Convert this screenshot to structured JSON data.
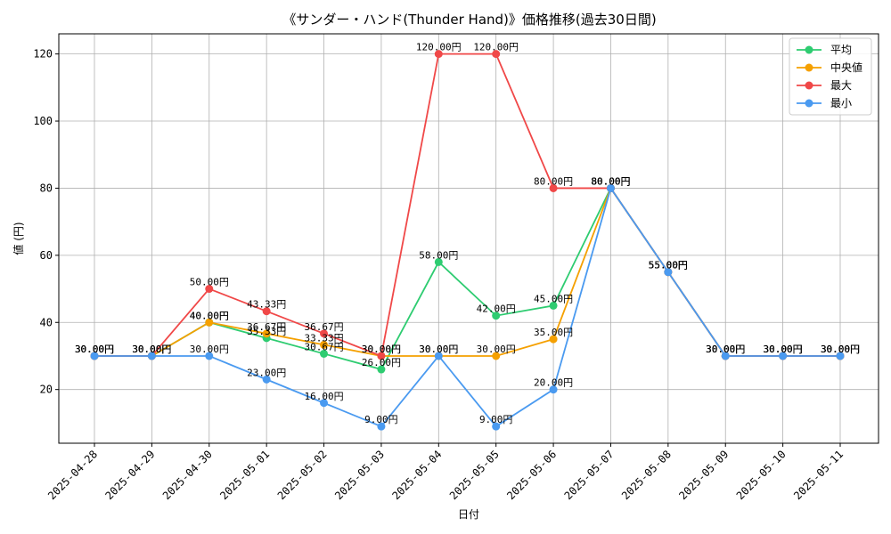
{
  "chart_data": {
    "type": "line",
    "title": "《サンダー・ハンド(Thunder Hand)》価格推移(過去30日間)",
    "xlabel": "日付",
    "ylabel": "値 (円)",
    "ylim": [
      4,
      126
    ],
    "yticks": [
      20,
      40,
      60,
      80,
      100,
      120
    ],
    "grid": true,
    "legend_position": "top-right",
    "label_suffix": "円",
    "categories": [
      "2025-04-28",
      "2025-04-29",
      "2025-04-30",
      "2025-05-01",
      "2025-05-02",
      "2025-05-03",
      "2025-05-04",
      "2025-05-05",
      "2025-05-06",
      "2025-05-07",
      "2025-05-08",
      "2025-05-09",
      "2025-05-10",
      "2025-05-11"
    ],
    "series": [
      {
        "name": "平均",
        "color": "#2ecc71",
        "values": [
          30,
          30,
          40,
          35.33,
          30.67,
          26,
          58,
          42,
          45,
          80,
          55,
          30,
          30,
          30
        ]
      },
      {
        "name": "中央値",
        "color": "#f5a000",
        "values": [
          30,
          30,
          40,
          36.67,
          33.33,
          30,
          30,
          30,
          35,
          80,
          55,
          30,
          30,
          30
        ]
      },
      {
        "name": "最大",
        "color": "#f04848",
        "values": [
          30,
          30,
          50,
          43.33,
          36.67,
          30,
          120,
          120,
          80,
          80,
          55,
          30,
          30,
          30
        ]
      },
      {
        "name": "最小",
        "color": "#4a9af0",
        "values": [
          30,
          30,
          30,
          23,
          16,
          9,
          30,
          9,
          20,
          80,
          55,
          30,
          30,
          30
        ]
      }
    ]
  }
}
